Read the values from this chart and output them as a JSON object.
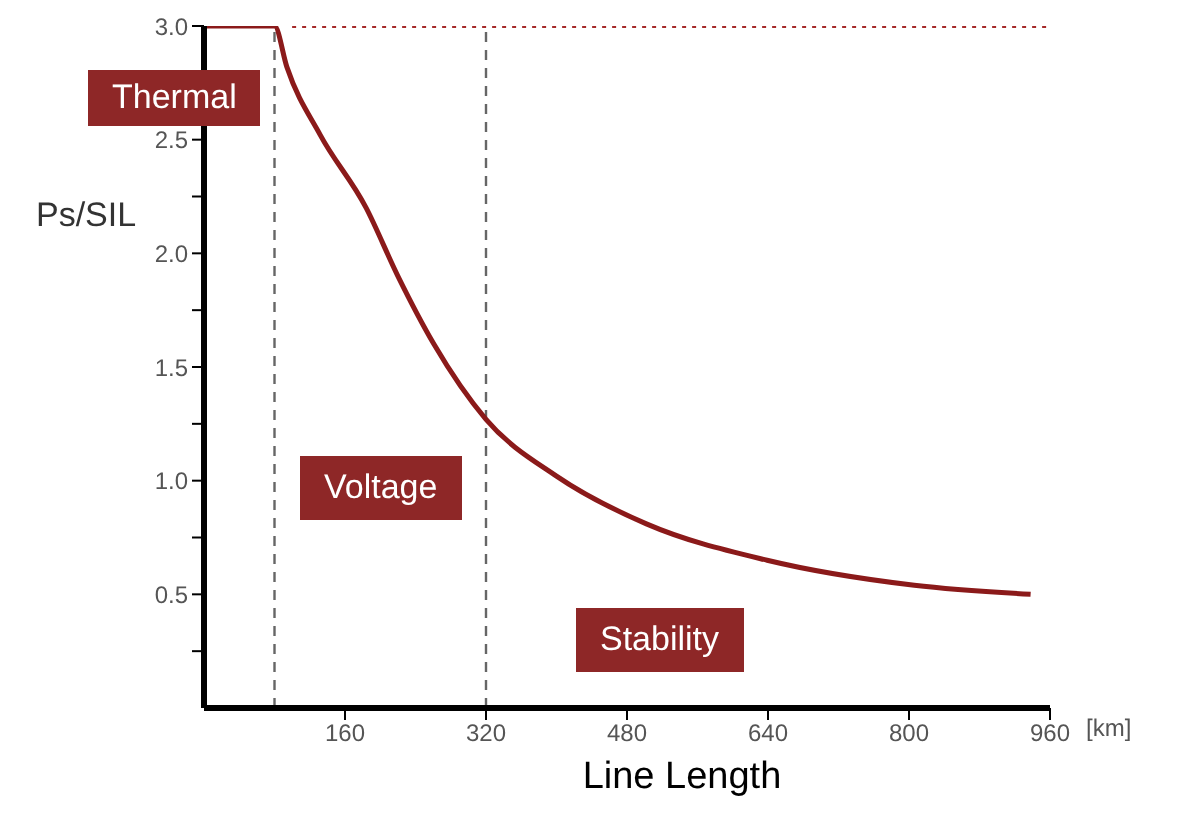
{
  "chart_data": {
    "type": "line",
    "xlabel": "Line Length",
    "ylabel": "Ps/SIL",
    "xlim": [
      0,
      960
    ],
    "xticks": [
      160,
      320,
      480,
      640,
      800,
      960
    ],
    "ylim": [
      0,
      3
    ],
    "yticks": [
      {
        "value": 0.25,
        "label": null
      },
      0.5,
      {
        "value": 0.75,
        "label": null
      },
      {
        "value": 1,
        "label": "1.0"
      },
      {
        "value": 1.25,
        "label": null
      },
      1.5,
      {
        "value": 1.75,
        "label": null
      },
      {
        "value": 2,
        "label": "2.0"
      },
      {
        "value": 2.25,
        "label": null
      },
      2.5,
      {
        "value": 2.75,
        "label": null
      },
      {
        "value": 3,
        "label": "3.0"
      }
    ],
    "series": [
      {
        "color": "#8b1a1a",
        "x": [
          0,
          80,
          94,
          132,
          184,
          220,
          261,
          320,
          400,
          502,
          639,
          806,
          938
        ],
        "values": [
          3,
          3,
          2.82,
          2.52,
          2.2,
          1.9,
          1.6,
          1.27,
          1.02,
          0.81,
          0.65,
          0.54,
          0.5
        ]
      },
      {
        "color": "#a52a2a",
        "line_style": "dotted",
        "x": [
          100,
          960
        ],
        "values": [
          3,
          3
        ]
      }
    ],
    "ref_lines": [
      {
        "axis": "x",
        "value": 80,
        "color": "#666666",
        "line_style": "dashed"
      },
      {
        "axis": "x",
        "value": 320,
        "color": "#666666",
        "line_style": "dashed"
      }
    ],
    "annotations": [
      "Thermal",
      "Voltage",
      "Stability",
      "[km]"
    ],
    "grid": false,
    "legend": false,
    "marker": "none",
    "line_style": "solid"
  }
}
